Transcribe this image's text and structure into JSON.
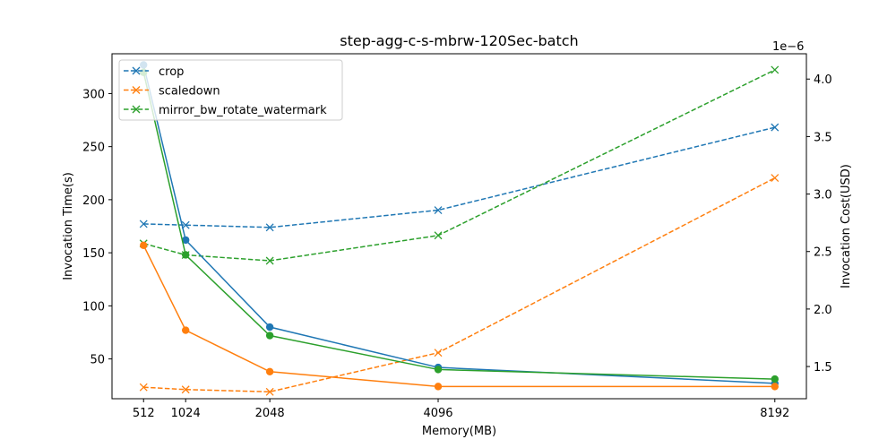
{
  "chart_data": {
    "type": "line",
    "title": "step-agg-c-s-mbrw-120Sec-batch",
    "xlabel": "Memory(MB)",
    "ylabel": "Invocation Time(s)",
    "y2label": "Invocation Cost(USD)",
    "y2_offset_text": "1e−6",
    "x": [
      512,
      1024,
      2048,
      4096,
      8192
    ],
    "x_tick_labels": [
      "512",
      "1024",
      "2048",
      "4096",
      "8192"
    ],
    "xlim": [
      128,
      8576
    ],
    "ylim": [
      12.5,
      337.5
    ],
    "y_ticks": [
      50,
      100,
      150,
      200,
      250,
      300
    ],
    "y2lim": [
      1.22,
      4.22
    ],
    "y2_ticks": [
      1.5,
      2.0,
      2.5,
      3.0,
      3.5,
      4.0
    ],
    "y2_tick_labels": [
      "1.5",
      "2.0",
      "2.5",
      "3.0",
      "3.5",
      "4.0"
    ],
    "legend": {
      "placement": "top-left",
      "entries": [
        "crop",
        "scaledown",
        "mirror_bw_rotate_watermark"
      ]
    },
    "colors": {
      "crop": "#1f77b4",
      "scaledown": "#ff7f0e",
      "mirror_bw_rotate_watermark": "#2ca02c"
    },
    "series_time": [
      {
        "name": "crop",
        "values": [
          327,
          162,
          80,
          42,
          27
        ]
      },
      {
        "name": "scaledown",
        "values": [
          157,
          77,
          38,
          24,
          24
        ]
      },
      {
        "name": "mirror_bw_rotate_watermark",
        "values": [
          320,
          148,
          72,
          40,
          31
        ]
      }
    ],
    "series_cost": [
      {
        "name": "crop",
        "values": [
          2.74,
          2.73,
          2.71,
          2.86,
          3.58
        ]
      },
      {
        "name": "scaledown",
        "values": [
          1.32,
          1.3,
          1.28,
          1.62,
          3.14
        ]
      },
      {
        "name": "mirror_bw_rotate_watermark",
        "values": [
          2.57,
          2.47,
          2.42,
          2.64,
          4.08
        ]
      }
    ],
    "grid": false
  }
}
